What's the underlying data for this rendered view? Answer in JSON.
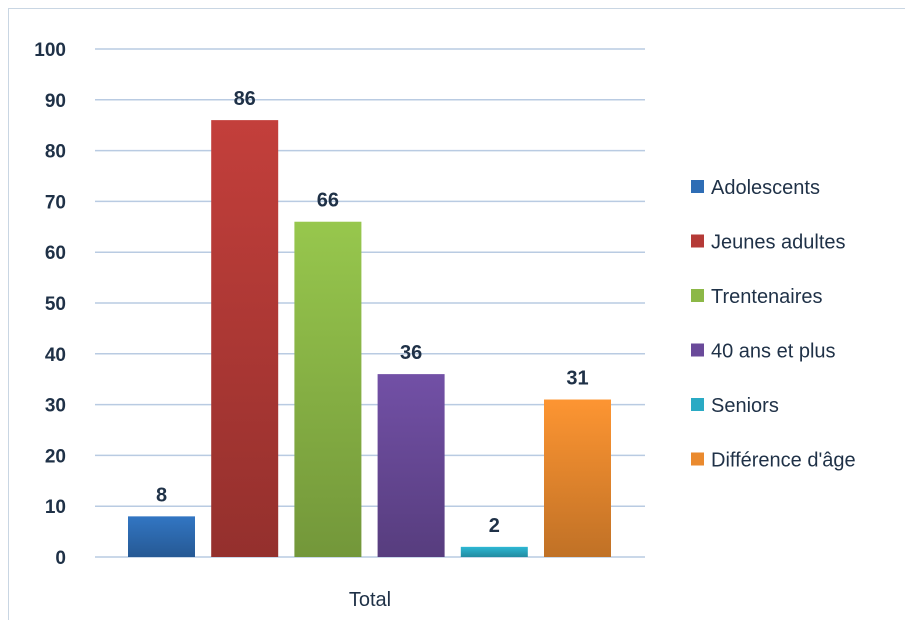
{
  "chart_data": {
    "type": "bar",
    "categories": [
      "Total"
    ],
    "series": [
      {
        "name": "Adolescents",
        "values": [
          8
        ],
        "color": "#2e6db5"
      },
      {
        "name": "Jeunes adultes",
        "values": [
          86
        ],
        "color": "#b53a37"
      },
      {
        "name": "Trentenaires",
        "values": [
          66
        ],
        "color": "#8cb847"
      },
      {
        "name": "40 ans et plus",
        "values": [
          36
        ],
        "color": "#6a4a9a"
      },
      {
        "name": "Seniors",
        "values": [
          2
        ],
        "color": "#2aaac4"
      },
      {
        "name": "Différence d'âge",
        "values": [
          31
        ],
        "color": "#ea8a2e"
      }
    ],
    "ylim": [
      0,
      100
    ],
    "yticks": [
      "0",
      "10",
      "20",
      "30",
      "40",
      "50",
      "60",
      "70",
      "80",
      "90",
      "100"
    ],
    "title": "",
    "xlabel": "",
    "ylabel": "",
    "grid": true,
    "legend_position": "right"
  }
}
